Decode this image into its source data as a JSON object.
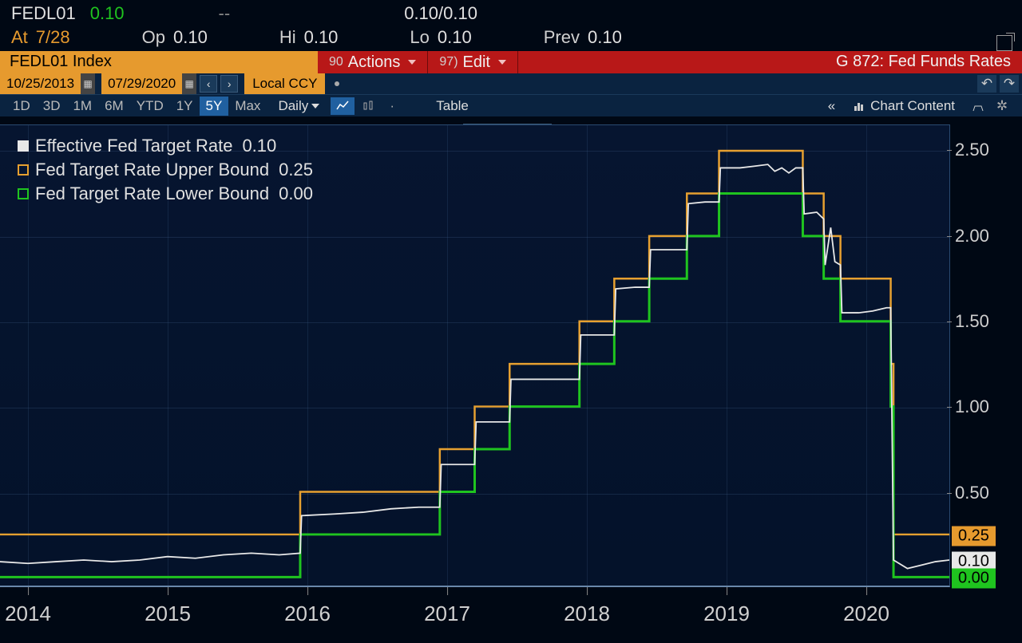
{
  "ticker": {
    "symbol": "FEDL01",
    "last": "0.10",
    "dash": "--",
    "quote": "0.10/0.10"
  },
  "ohlc": {
    "at_lbl": "At",
    "at_val": "7/28",
    "op_lbl": "Op",
    "op_val": "0.10",
    "hi_lbl": "Hi",
    "hi_val": "0.10",
    "lo_lbl": "Lo",
    "lo_val": "0.10",
    "prev_lbl": "Prev",
    "prev_val": "0.10"
  },
  "action_bar": {
    "index_label": "FEDL01 Index",
    "actions_num": "90",
    "actions_label": "Actions",
    "edit_num": "97)",
    "edit_label": "Edit",
    "title": "G 872: Fed Funds Rates"
  },
  "date_range": {
    "start": "10/25/2013",
    "end": "07/29/2020",
    "local_ccy": "Local CCY"
  },
  "toolbar": {
    "ranges": [
      "1D",
      "3D",
      "1M",
      "6M",
      "YTD",
      "1Y",
      "5Y",
      "Max"
    ],
    "active_range": "5Y",
    "freq": "Daily",
    "table": "Table",
    "chart_content": "Chart Content",
    "annotate": "Annotate"
  },
  "legend": {
    "series": [
      {
        "label": "Effective Fed Target Rate",
        "value": "0.10",
        "color": "#e8e8e8"
      },
      {
        "label": "Fed Target Rate Upper Bound",
        "value": "0.25",
        "color": "#e6a030"
      },
      {
        "label": "Fed Target Rate Lower Bound",
        "value": "0.00",
        "color": "#1fc41f"
      }
    ]
  },
  "chart": {
    "type": "line-step",
    "background_color": "#061530",
    "grid_color": "rgba(60,90,130,0.3)",
    "ylim": [
      -0.05,
      2.65
    ],
    "yticks": [
      0.5,
      1.0,
      1.5,
      2.0,
      2.5
    ],
    "xlim": [
      2013.8,
      2020.6
    ],
    "xticks": [
      2014,
      2015,
      2016,
      2017,
      2018,
      2019,
      2020
    ],
    "y_markers": [
      {
        "value": 0.25,
        "label": "0.25",
        "class": "orange"
      },
      {
        "value": 0.1,
        "label": "0.10",
        "class": "white"
      },
      {
        "value": 0.0,
        "label": "0.00",
        "class": "green"
      }
    ],
    "upper_bound": {
      "color": "#e6a030",
      "width": 2.5,
      "steps": [
        [
          2013.8,
          0.25
        ],
        [
          2015.95,
          0.25
        ],
        [
          2015.95,
          0.5
        ],
        [
          2016.95,
          0.5
        ],
        [
          2016.95,
          0.75
        ],
        [
          2017.2,
          0.75
        ],
        [
          2017.2,
          1.0
        ],
        [
          2017.45,
          1.0
        ],
        [
          2017.45,
          1.25
        ],
        [
          2017.95,
          1.25
        ],
        [
          2017.95,
          1.5
        ],
        [
          2018.2,
          1.5
        ],
        [
          2018.2,
          1.75
        ],
        [
          2018.45,
          1.75
        ],
        [
          2018.45,
          2.0
        ],
        [
          2018.72,
          2.0
        ],
        [
          2018.72,
          2.25
        ],
        [
          2018.95,
          2.25
        ],
        [
          2018.95,
          2.5
        ],
        [
          2019.55,
          2.5
        ],
        [
          2019.55,
          2.25
        ],
        [
          2019.7,
          2.25
        ],
        [
          2019.7,
          2.0
        ],
        [
          2019.82,
          2.0
        ],
        [
          2019.82,
          1.75
        ],
        [
          2020.18,
          1.75
        ],
        [
          2020.18,
          1.25
        ],
        [
          2020.2,
          1.25
        ],
        [
          2020.2,
          0.25
        ],
        [
          2020.6,
          0.25
        ]
      ]
    },
    "lower_bound": {
      "color": "#1fc41f",
      "width": 3,
      "steps": [
        [
          2013.8,
          0.0
        ],
        [
          2015.95,
          0.0
        ],
        [
          2015.95,
          0.25
        ],
        [
          2016.95,
          0.25
        ],
        [
          2016.95,
          0.5
        ],
        [
          2017.2,
          0.5
        ],
        [
          2017.2,
          0.75
        ],
        [
          2017.45,
          0.75
        ],
        [
          2017.45,
          1.0
        ],
        [
          2017.95,
          1.0
        ],
        [
          2017.95,
          1.25
        ],
        [
          2018.2,
          1.25
        ],
        [
          2018.2,
          1.5
        ],
        [
          2018.45,
          1.5
        ],
        [
          2018.45,
          1.75
        ],
        [
          2018.72,
          1.75
        ],
        [
          2018.72,
          2.0
        ],
        [
          2018.95,
          2.0
        ],
        [
          2018.95,
          2.25
        ],
        [
          2019.55,
          2.25
        ],
        [
          2019.55,
          2.0
        ],
        [
          2019.7,
          2.0
        ],
        [
          2019.7,
          1.75
        ],
        [
          2019.82,
          1.75
        ],
        [
          2019.82,
          1.5
        ],
        [
          2020.18,
          1.5
        ],
        [
          2020.18,
          1.0
        ],
        [
          2020.2,
          1.0
        ],
        [
          2020.2,
          0.0
        ],
        [
          2020.6,
          0.0
        ]
      ]
    },
    "effective": {
      "color": "#e8e8e8",
      "width": 1.8,
      "points": [
        [
          2013.8,
          0.09
        ],
        [
          2014.0,
          0.08
        ],
        [
          2014.2,
          0.09
        ],
        [
          2014.4,
          0.1
        ],
        [
          2014.6,
          0.09
        ],
        [
          2014.8,
          0.1
        ],
        [
          2015.0,
          0.12
        ],
        [
          2015.2,
          0.11
        ],
        [
          2015.4,
          0.13
        ],
        [
          2015.6,
          0.14
        ],
        [
          2015.8,
          0.13
        ],
        [
          2015.95,
          0.14
        ],
        [
          2015.96,
          0.36
        ],
        [
          2016.2,
          0.37
        ],
        [
          2016.4,
          0.38
        ],
        [
          2016.6,
          0.4
        ],
        [
          2016.8,
          0.41
        ],
        [
          2016.95,
          0.41
        ],
        [
          2016.96,
          0.66
        ],
        [
          2017.1,
          0.66
        ],
        [
          2017.2,
          0.66
        ],
        [
          2017.21,
          0.91
        ],
        [
          2017.35,
          0.91
        ],
        [
          2017.45,
          0.91
        ],
        [
          2017.46,
          1.16
        ],
        [
          2017.7,
          1.16
        ],
        [
          2017.95,
          1.16
        ],
        [
          2017.96,
          1.42
        ],
        [
          2018.1,
          1.42
        ],
        [
          2018.2,
          1.42
        ],
        [
          2018.21,
          1.69
        ],
        [
          2018.35,
          1.7
        ],
        [
          2018.45,
          1.7
        ],
        [
          2018.46,
          1.92
        ],
        [
          2018.6,
          1.92
        ],
        [
          2018.72,
          1.92
        ],
        [
          2018.73,
          2.19
        ],
        [
          2018.85,
          2.2
        ],
        [
          2018.95,
          2.2
        ],
        [
          2018.96,
          2.4
        ],
        [
          2019.1,
          2.4
        ],
        [
          2019.2,
          2.41
        ],
        [
          2019.3,
          2.42
        ],
        [
          2019.35,
          2.38
        ],
        [
          2019.4,
          2.4
        ],
        [
          2019.45,
          2.37
        ],
        [
          2019.5,
          2.4
        ],
        [
          2019.55,
          2.4
        ],
        [
          2019.56,
          2.13
        ],
        [
          2019.65,
          2.14
        ],
        [
          2019.7,
          2.1
        ],
        [
          2019.71,
          1.83
        ],
        [
          2019.75,
          2.05
        ],
        [
          2019.78,
          1.85
        ],
        [
          2019.82,
          1.83
        ],
        [
          2019.83,
          1.55
        ],
        [
          2019.95,
          1.55
        ],
        [
          2020.05,
          1.56
        ],
        [
          2020.15,
          1.58
        ],
        [
          2020.18,
          1.58
        ],
        [
          2020.2,
          0.1
        ],
        [
          2020.3,
          0.05
        ],
        [
          2020.4,
          0.07
        ],
        [
          2020.5,
          0.09
        ],
        [
          2020.6,
          0.1
        ]
      ]
    }
  }
}
